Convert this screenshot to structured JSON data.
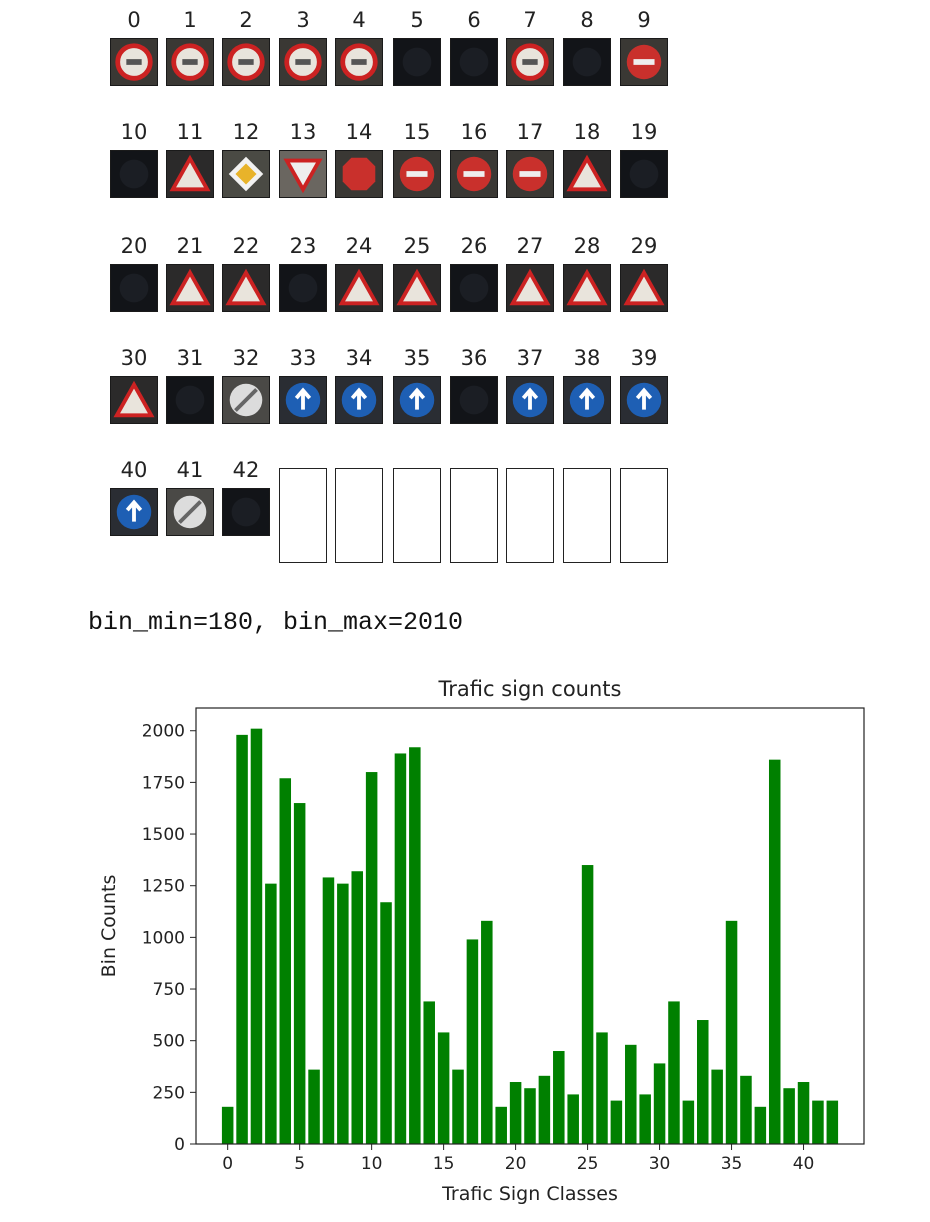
{
  "sign_grid": {
    "labels": [
      "0",
      "1",
      "2",
      "3",
      "4",
      "5",
      "6",
      "7",
      "8",
      "9",
      "10",
      "11",
      "12",
      "13",
      "14",
      "15",
      "16",
      "17",
      "18",
      "19",
      "20",
      "21",
      "22",
      "23",
      "24",
      "25",
      "26",
      "27",
      "28",
      "29",
      "30",
      "31",
      "32",
      "33",
      "34",
      "35",
      "36",
      "37",
      "38",
      "39",
      "40",
      "41",
      "42"
    ],
    "empty_panels": 7
  },
  "output_text": "bin_min=180, bin_max=2010",
  "chart_data": {
    "type": "bar",
    "title": "Trafic sign counts",
    "xlabel": "Trafic Sign Classes",
    "ylabel": "Bin Counts",
    "bar_color": "#008000",
    "categories": [
      0,
      1,
      2,
      3,
      4,
      5,
      6,
      7,
      8,
      9,
      10,
      11,
      12,
      13,
      14,
      15,
      16,
      17,
      18,
      19,
      20,
      21,
      22,
      23,
      24,
      25,
      26,
      27,
      28,
      29,
      30,
      31,
      32,
      33,
      34,
      35,
      36,
      37,
      38,
      39,
      40,
      41,
      42
    ],
    "values": [
      180,
      1980,
      2010,
      1260,
      1770,
      1650,
      360,
      1290,
      1260,
      1320,
      1800,
      1170,
      1890,
      1920,
      690,
      540,
      360,
      990,
      1080,
      180,
      300,
      270,
      330,
      450,
      240,
      1350,
      540,
      210,
      480,
      240,
      390,
      690,
      210,
      600,
      360,
      1080,
      330,
      180,
      1860,
      270,
      300,
      210,
      210
    ],
    "xticks": [
      0,
      5,
      10,
      15,
      20,
      25,
      30,
      35,
      40
    ],
    "yticks": [
      0,
      250,
      500,
      750,
      1000,
      1250,
      1500,
      1750,
      2000
    ],
    "xlim": [
      -2.2,
      44.2
    ],
    "ylim": [
      0,
      2110
    ],
    "grid": false,
    "legend": "none"
  }
}
